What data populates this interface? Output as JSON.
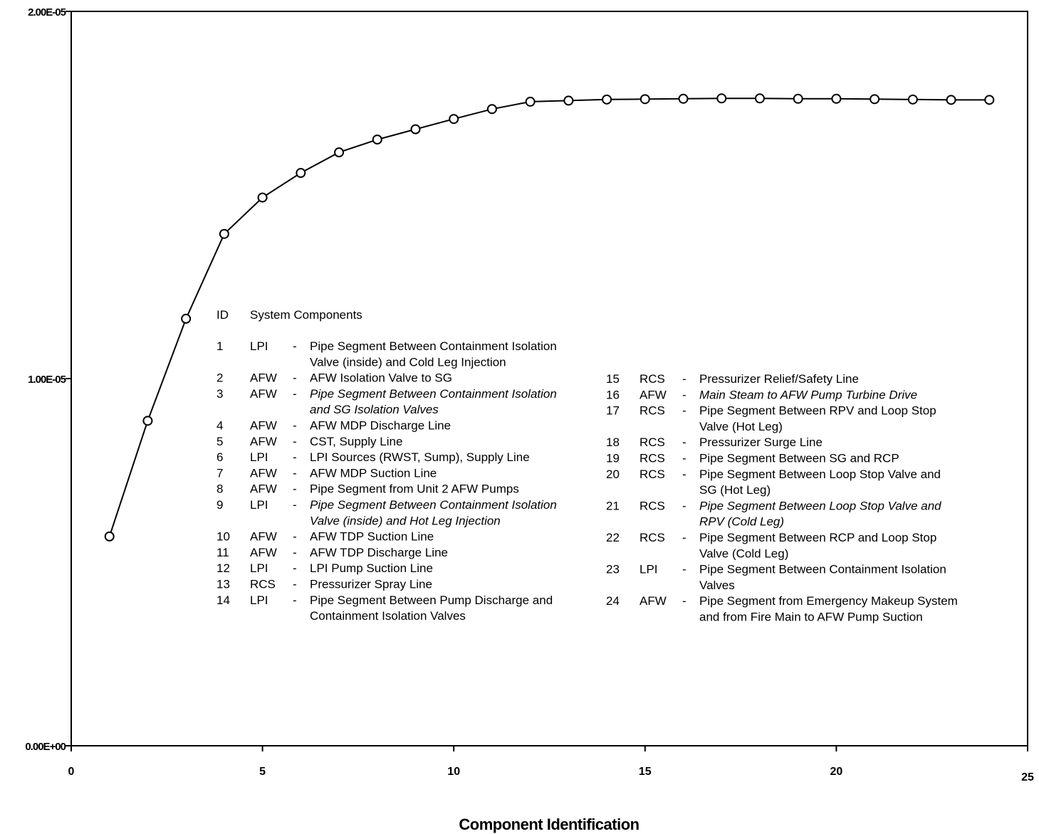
{
  "chart_data": {
    "type": "line",
    "title": "",
    "xlabel": "Component Identification",
    "ylabel": "",
    "xlim": [
      0,
      25
    ],
    "ylim": [
      0,
      2e-05
    ],
    "x_ticks": [
      {
        "value": 0,
        "label": "0"
      },
      {
        "value": 5,
        "label": "5"
      },
      {
        "value": 10,
        "label": "10"
      },
      {
        "value": 15,
        "label": "15"
      },
      {
        "value": 20,
        "label": "20"
      },
      {
        "value": 25,
        "label": "25"
      }
    ],
    "y_ticks": [
      {
        "value": 0,
        "label": "0.00E+00"
      },
      {
        "value": 1e-05,
        "label": "1.00E-05"
      },
      {
        "value": 2e-05,
        "label": "2.00E-05"
      }
    ],
    "grid": false,
    "series": [
      {
        "marker": "open-circle",
        "color": "#000000",
        "x": [
          1,
          2,
          3,
          4,
          5,
          6,
          7,
          8,
          9,
          10,
          11,
          12,
          13,
          14,
          15,
          16,
          17,
          18,
          19,
          20,
          21,
          22,
          23,
          24
        ],
        "y": [
          5.7e-06,
          8.85e-06,
          1.163e-05,
          1.394e-05,
          1.493e-05,
          1.56e-05,
          1.616e-05,
          1.651e-05,
          1.679e-05,
          1.707e-05,
          1.734e-05,
          1.754e-05,
          1.757e-05,
          1.76e-05,
          1.761e-05,
          1.762e-05,
          1.763e-05,
          1.763e-05,
          1.762e-05,
          1.762e-05,
          1.761e-05,
          1.76e-05,
          1.759e-05,
          1.759e-05
        ]
      }
    ],
    "legend_box": {
      "header_id": "ID",
      "header_components": "System Components",
      "dash": "-",
      "left_column": [
        {
          "id": "1",
          "system": "LPI",
          "lines": [
            "Pipe Segment Between Containment Isolation",
            "Valve (inside) and Cold Leg Injection"
          ],
          "italic": false
        },
        {
          "id": "2",
          "system": "AFW",
          "lines": [
            "AFW Isolation Valve to SG"
          ],
          "italic": false
        },
        {
          "id": "3",
          "system": "AFW",
          "lines": [
            "Pipe Segment Between Containment Isolation",
            "and SG Isolation Valves"
          ],
          "italic": true
        },
        {
          "id": "4",
          "system": "AFW",
          "lines": [
            "AFW MDP Discharge Line"
          ],
          "italic": false
        },
        {
          "id": "5",
          "system": "AFW",
          "lines": [
            "CST, Supply Line"
          ],
          "italic": false
        },
        {
          "id": "6",
          "system": "LPI",
          "lines": [
            "LPI Sources (RWST, Sump), Supply Line"
          ],
          "italic": false
        },
        {
          "id": "7",
          "system": "AFW",
          "lines": [
            "AFW MDP Suction Line"
          ],
          "italic": false
        },
        {
          "id": "8",
          "system": "AFW",
          "lines": [
            "Pipe Segment from Unit 2 AFW Pumps"
          ],
          "italic": false
        },
        {
          "id": "9",
          "system": "LPI",
          "lines": [
            "Pipe Segment Between Containment Isolation",
            "Valve (inside) and Hot Leg Injection"
          ],
          "italic": true
        },
        {
          "id": "10",
          "system": "AFW",
          "lines": [
            "AFW TDP Suction Line"
          ],
          "italic": false
        },
        {
          "id": "11",
          "system": "AFW",
          "lines": [
            "AFW TDP Discharge Line"
          ],
          "italic": false
        },
        {
          "id": "12",
          "system": "LPI",
          "lines": [
            "LPI Pump Suction Line"
          ],
          "italic": false
        },
        {
          "id": "13",
          "system": "RCS",
          "lines": [
            "Pressurizer Spray Line"
          ],
          "italic": false
        },
        {
          "id": "14",
          "system": "LPI",
          "lines": [
            "Pipe Segment Between Pump Discharge and",
            "Containment Isolation Valves"
          ],
          "italic": false
        }
      ],
      "right_column": [
        {
          "id": "15",
          "system": "RCS",
          "lines": [
            "Pressurizer Relief/Safety Line"
          ],
          "italic": false
        },
        {
          "id": "16",
          "system": "AFW",
          "lines": [
            "Main Steam to AFW Pump Turbine Drive"
          ],
          "italic": true
        },
        {
          "id": "17",
          "system": "RCS",
          "lines": [
            "Pipe Segment Between RPV and Loop Stop",
            "Valve (Hot Leg)"
          ],
          "italic": false
        },
        {
          "id": "18",
          "system": "RCS",
          "lines": [
            "Pressurizer Surge Line"
          ],
          "italic": false
        },
        {
          "id": "19",
          "system": "RCS",
          "lines": [
            "Pipe Segment Between SG and RCP"
          ],
          "italic": false
        },
        {
          "id": "20",
          "system": "RCS",
          "lines": [
            "Pipe Segment Between Loop Stop Valve and",
            "SG (Hot Leg)"
          ],
          "italic": false
        },
        {
          "id": "21",
          "system": "RCS",
          "lines": [
            "Pipe Segment Between Loop Stop Valve and",
            "RPV (Cold Leg)"
          ],
          "italic": true
        },
        {
          "id": "22",
          "system": "RCS",
          "lines": [
            "Pipe Segment Between RCP and Loop Stop",
            "Valve (Cold Leg)"
          ],
          "italic": false
        },
        {
          "id": "23",
          "system": "LPI",
          "lines": [
            "Pipe Segment Between Containment Isolation",
            "Valves"
          ],
          "italic": false
        },
        {
          "id": "24",
          "system": "AFW",
          "lines": [
            "Pipe Segment from Emergency Makeup System",
            "and from Fire Main to AFW Pump Suction"
          ],
          "italic": false
        }
      ]
    }
  }
}
